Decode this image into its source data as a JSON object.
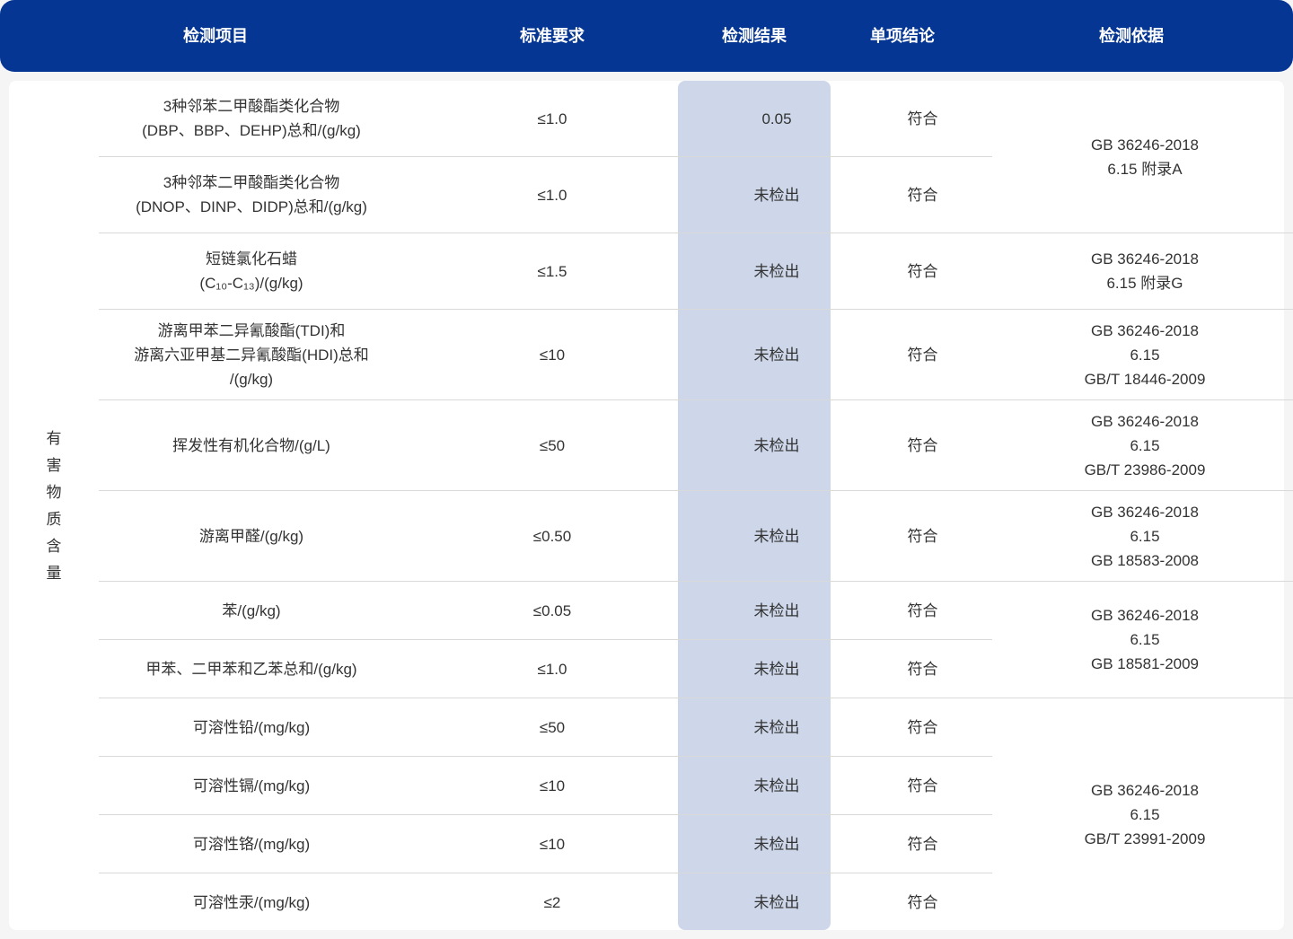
{
  "header": [
    "检测项目",
    "标准要求",
    "检测结果",
    "单项结论",
    "检测依据"
  ],
  "category": "有害物质含量",
  "colors": {
    "header_bg": "#053693",
    "highlight": "#cdd7e9"
  },
  "rows": [
    {
      "item": "3种邻苯二甲酸酯类化合物\n(DBP、BBP、DEHP)总和/(g/kg)",
      "standard": "≤1.0",
      "result": "0.05",
      "conclusion": "符合"
    },
    {
      "item": "3种邻苯二甲酸酯类化合物\n(DNOP、DINP、DIDP)总和/(g/kg)",
      "standard": "≤1.0",
      "result": "未检出",
      "conclusion": "符合"
    },
    {
      "item": "短链氯化石蜡\n(C₁₀-C₁₃)/(g/kg)",
      "standard": "≤1.5",
      "result": "未检出",
      "conclusion": "符合"
    },
    {
      "item": "游离甲苯二异氰酸酯(TDI)和\n游离六亚甲基二异氰酸酯(HDI)总和\n/(g/kg)",
      "standard": "≤10",
      "result": "未检出",
      "conclusion": "符合"
    },
    {
      "item": "挥发性有机化合物/(g/L)",
      "standard": "≤50",
      "result": "未检出",
      "conclusion": "符合"
    },
    {
      "item": "游离甲醛/(g/kg)",
      "standard": "≤0.50",
      "result": "未检出",
      "conclusion": "符合"
    },
    {
      "item": "苯/(g/kg)",
      "standard": "≤0.05",
      "result": "未检出",
      "conclusion": "符合"
    },
    {
      "item": "甲苯、二甲苯和乙苯总和/(g/kg)",
      "standard": "≤1.0",
      "result": "未检出",
      "conclusion": "符合"
    },
    {
      "item": "可溶性铅/(mg/kg)",
      "standard": "≤50",
      "result": "未检出",
      "conclusion": "符合"
    },
    {
      "item": "可溶性镉/(mg/kg)",
      "standard": "≤10",
      "result": "未检出",
      "conclusion": "符合"
    },
    {
      "item": "可溶性铬/(mg/kg)",
      "standard": "≤10",
      "result": "未检出",
      "conclusion": "符合"
    },
    {
      "item": "可溶性汞/(mg/kg)",
      "standard": "≤2",
      "result": "未检出",
      "conclusion": "符合"
    }
  ],
  "basis": [
    {
      "rows": [
        1,
        3
      ],
      "text": "GB 36246-2018\n6.15 附录A"
    },
    {
      "rows": [
        3,
        4
      ],
      "text": "GB 36246-2018\n6.15 附录G"
    },
    {
      "rows": [
        4,
        5
      ],
      "text": "GB 36246-2018\n6.15\nGB/T 18446-2009"
    },
    {
      "rows": [
        5,
        6
      ],
      "text": "GB 36246-2018\n6.15\nGB/T 23986-2009"
    },
    {
      "rows": [
        6,
        7
      ],
      "text": "GB 36246-2018\n6.15\nGB 18583-2008"
    },
    {
      "rows": [
        7,
        9
      ],
      "text": "GB 36246-2018\n6.15\nGB 18581-2009"
    },
    {
      "rows": [
        9,
        13
      ],
      "text": "GB 36246-2018\n6.15\nGB/T 23991-2009"
    }
  ]
}
